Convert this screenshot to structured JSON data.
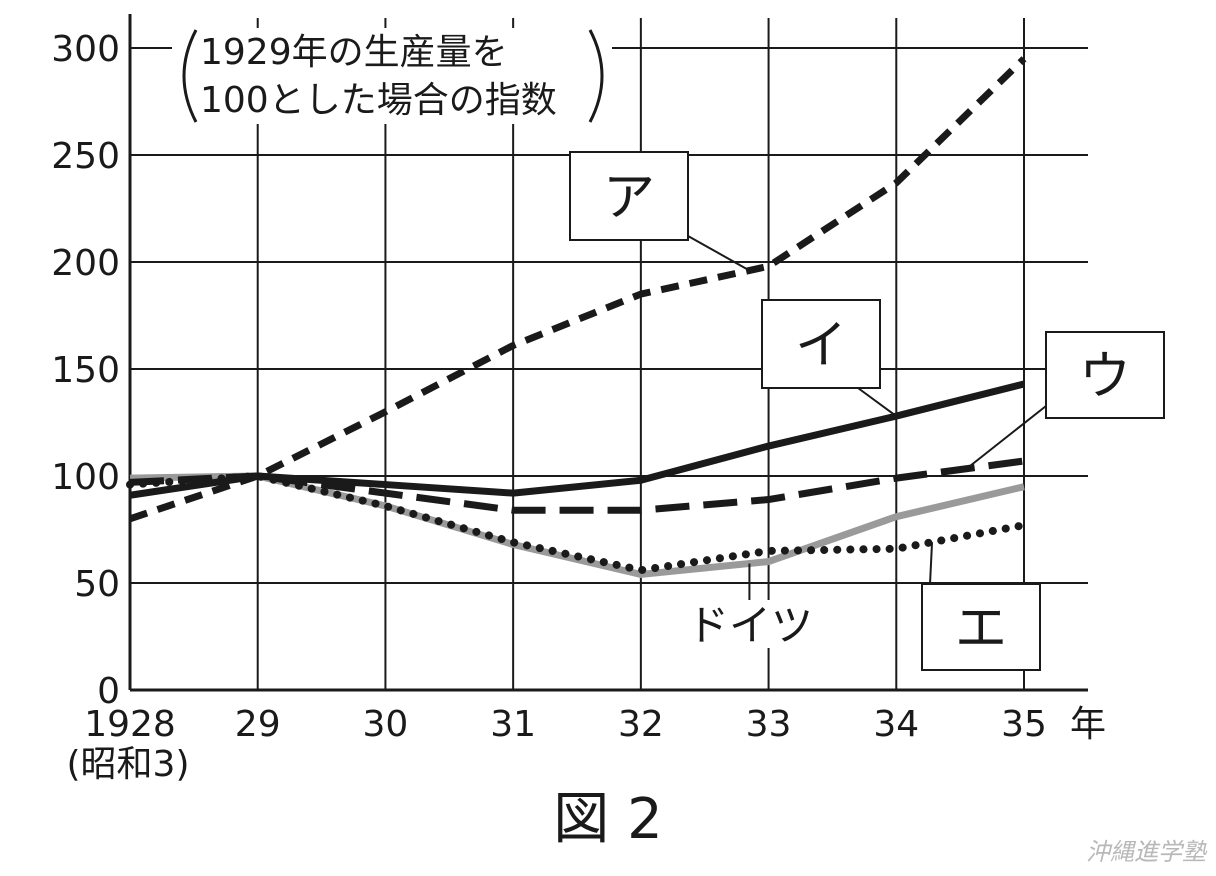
{
  "chart_data": {
    "type": "line",
    "title": "",
    "caption": "図 2",
    "note": [
      "1929年の生産量を",
      "100とした場合の指数"
    ],
    "x": [
      1928,
      1929,
      1930,
      1931,
      1932,
      1933,
      1934,
      1935
    ],
    "xtick_labels": [
      "1928",
      "29",
      "30",
      "31",
      "32",
      "33",
      "34",
      "35"
    ],
    "xtick_sublabel": "(昭和3)",
    "xunit": "年",
    "ylim": [
      0,
      300
    ],
    "yticks": [
      0,
      50,
      100,
      150,
      200,
      250,
      300
    ],
    "grid": true,
    "series": [
      {
        "name": "ア",
        "style": "dashed",
        "color": "#1a1a1a",
        "values": [
          80,
          100,
          130,
          161,
          185,
          198,
          237,
          295
        ]
      },
      {
        "name": "イ",
        "style": "solid",
        "color": "#1a1a1a",
        "values": [
          91,
          100,
          96,
          92,
          98,
          114,
          128,
          143
        ]
      },
      {
        "name": "ウ",
        "style": "longdash",
        "color": "#1a1a1a",
        "values": [
          97,
          100,
          92,
          84,
          84,
          89,
          99,
          107
        ]
      },
      {
        "name": "ドイツ",
        "style": "solid",
        "color": "#9a9a9a",
        "values": [
          99,
          100,
          86,
          68,
          54,
          60,
          81,
          95
        ]
      },
      {
        "name": "エ",
        "style": "dotted",
        "color": "#1a1a1a",
        "values": [
          96,
          100,
          86,
          69,
          56,
          65,
          66,
          77
        ]
      }
    ]
  },
  "footer": {
    "watermark": "沖縄進学塾"
  }
}
